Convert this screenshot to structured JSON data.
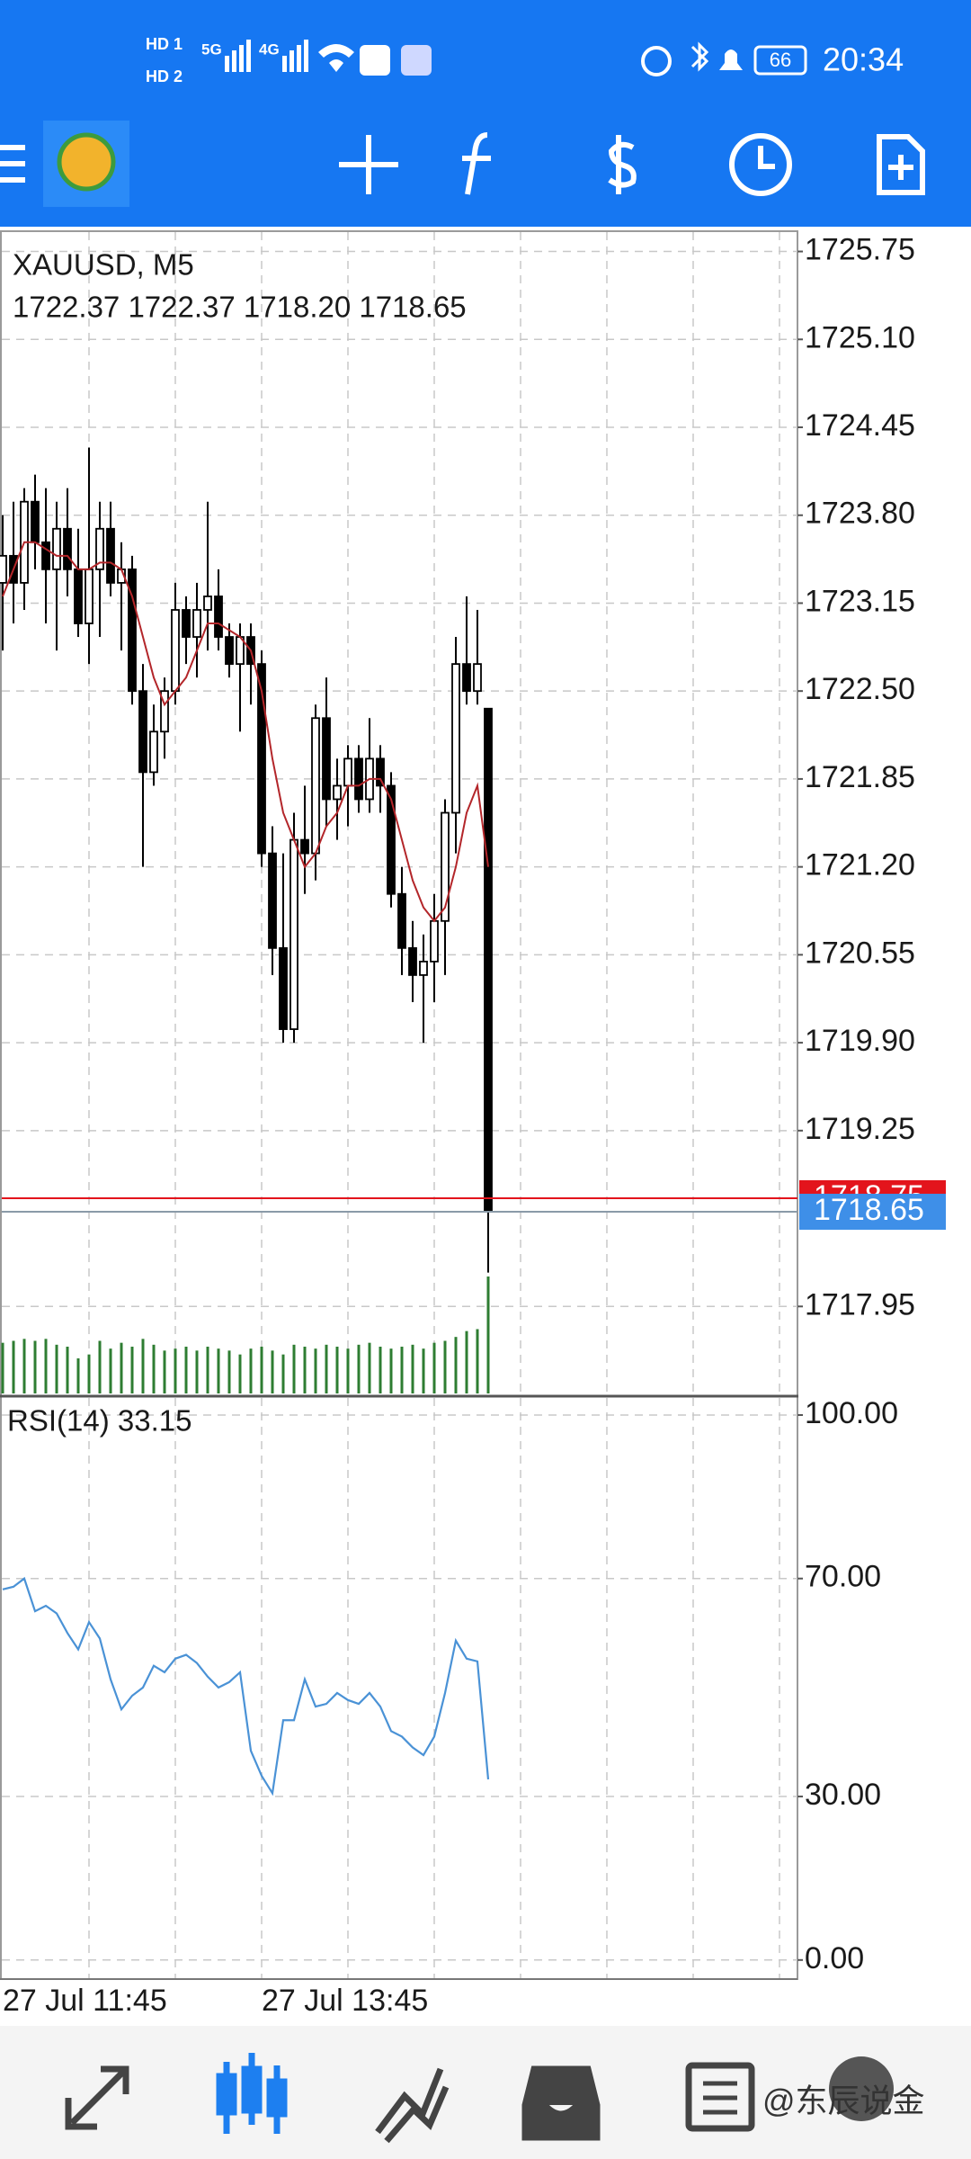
{
  "status_bar": {
    "hd1": "HD 1",
    "hd2": "HD 2",
    "net1": "5G",
    "net2": "4G",
    "battery": "66",
    "time": "20:34"
  },
  "chart_data": [
    {
      "type": "candlestick",
      "symbol": "XAUUSD, M5",
      "ohlc_text": "1722.37 1722.37 1718.20 1718.65",
      "categories": [
        "27 Jul 11:45",
        null,
        null,
        null,
        null,
        null,
        null,
        null,
        null,
        null,
        null,
        null,
        null,
        null,
        null,
        null,
        null,
        null,
        null,
        null,
        null,
        null,
        null,
        null,
        "27 Jul 13:45",
        null,
        null,
        null,
        null,
        null,
        null,
        null,
        null,
        null,
        null,
        null,
        null,
        null,
        null,
        null,
        null,
        null,
        null,
        null,
        null,
        null
      ],
      "open": [
        1723.3,
        1723.5,
        1723.3,
        1723.9,
        1723.6,
        1723.4,
        1723.7,
        1723.4,
        1723.0,
        1723.4,
        1723.7,
        1723.3,
        1723.4,
        1722.5,
        1721.9,
        1722.2,
        1722.5,
        1723.1,
        1722.9,
        1723.1,
        1723.2,
        1722.9,
        1722.7,
        1722.9,
        1722.7,
        1721.3,
        1720.6,
        1720.0,
        1721.4,
        1721.3,
        1722.3,
        1721.7,
        1721.8,
        1722.0,
        1721.7,
        1722.0,
        1721.8,
        1721.0,
        1720.6,
        1720.4,
        1720.5,
        1720.8,
        1721.6,
        1722.7,
        1722.5,
        1722.37
      ],
      "high": [
        1723.8,
        1723.9,
        1724.0,
        1724.1,
        1724.0,
        1723.9,
        1724.0,
        1723.7,
        1724.3,
        1723.9,
        1723.9,
        1723.6,
        1723.5,
        1722.7,
        1722.4,
        1722.6,
        1723.3,
        1723.2,
        1723.3,
        1723.9,
        1723.4,
        1723.0,
        1723.0,
        1723.0,
        1722.8,
        1721.5,
        1721.3,
        1721.6,
        1721.8,
        1722.4,
        1722.6,
        1722.0,
        1722.1,
        1722.1,
        1722.3,
        1722.1,
        1721.9,
        1721.2,
        1720.8,
        1720.7,
        1721.0,
        1721.7,
        1722.9,
        1723.2,
        1723.1,
        1722.37
      ],
      "low": [
        1722.8,
        1723.0,
        1723.1,
        1723.4,
        1723.0,
        1722.8,
        1723.2,
        1722.9,
        1722.7,
        1722.9,
        1723.2,
        1722.8,
        1722.4,
        1721.2,
        1721.8,
        1722.0,
        1722.4,
        1722.7,
        1722.6,
        1722.8,
        1722.8,
        1722.6,
        1722.2,
        1722.4,
        1721.2,
        1720.4,
        1719.9,
        1719.9,
        1721.0,
        1721.1,
        1721.5,
        1721.4,
        1721.5,
        1721.6,
        1721.6,
        1721.6,
        1720.9,
        1720.4,
        1720.2,
        1719.9,
        1720.2,
        1720.4,
        1721.3,
        1722.4,
        1722.4,
        1718.2
      ],
      "close": [
        1723.5,
        1723.3,
        1723.9,
        1723.6,
        1723.4,
        1723.7,
        1723.4,
        1723.0,
        1723.4,
        1723.7,
        1723.3,
        1723.4,
        1722.5,
        1721.9,
        1722.2,
        1722.5,
        1723.1,
        1722.9,
        1723.1,
        1723.2,
        1722.9,
        1722.7,
        1722.9,
        1722.7,
        1721.3,
        1720.6,
        1720.0,
        1721.4,
        1721.3,
        1722.3,
        1721.7,
        1721.8,
        1722.0,
        1721.7,
        1722.0,
        1721.8,
        1721.0,
        1720.6,
        1720.4,
        1720.5,
        1720.8,
        1721.6,
        1722.7,
        1722.5,
        1722.7,
        1718.65
      ],
      "ma": {
        "color": "#b3262a",
        "values": [
          1723.2,
          1723.4,
          1723.6,
          1723.6,
          1723.55,
          1723.5,
          1723.5,
          1723.4,
          1723.4,
          1723.45,
          1723.45,
          1723.4,
          1723.2,
          1722.9,
          1722.6,
          1722.4,
          1722.5,
          1722.6,
          1722.8,
          1723.0,
          1723.0,
          1722.95,
          1722.9,
          1722.8,
          1722.5,
          1722.0,
          1721.6,
          1721.4,
          1721.2,
          1721.3,
          1721.5,
          1721.6,
          1721.8,
          1721.8,
          1721.85,
          1721.85,
          1721.7,
          1721.4,
          1721.1,
          1720.9,
          1720.8,
          1720.9,
          1721.2,
          1721.6,
          1721.8,
          1721.2
        ]
      },
      "volume": {
        "color": "#2e7d32",
        "values": [
          260,
          270,
          280,
          270,
          280,
          250,
          240,
          180,
          200,
          270,
          230,
          260,
          240,
          280,
          250,
          220,
          230,
          240,
          220,
          240,
          230,
          220,
          200,
          230,
          240,
          220,
          200,
          250,
          240,
          230,
          250,
          240,
          230,
          250,
          260,
          240,
          230,
          240,
          250,
          230,
          260,
          270,
          290,
          320,
          330,
          600
        ]
      },
      "ylim": [
        1717.3,
        1725.9
      ],
      "yticks": [
        1725.75,
        {
          "value": 1725.1,
          "label": "1725.10"
        },
        1724.45,
        {
          "value": 1723.8,
          "label": "1723.80"
        },
        1723.15,
        {
          "value": 1722.5,
          "label": "1722.50"
        },
        1721.85,
        {
          "value": 1721.2,
          "label": "1721.20"
        },
        1720.55,
        {
          "value": 1719.9,
          "label": "1719.90"
        },
        1719.25,
        1717.95
      ],
      "ask": 1718.75,
      "ask_color": "#e3141c",
      "bid": 1718.65,
      "bid_color": "#3e8fe8",
      "grid": true
    },
    {
      "type": "line",
      "title": "RSI(14) 33.15",
      "color": "#4a92d6",
      "values": [
        68,
        68.5,
        70,
        64,
        65,
        63.6,
        60,
        57,
        62,
        59,
        51.5,
        46,
        48.5,
        50,
        54,
        52.8,
        55.3,
        56,
        54.5,
        52,
        50,
        51,
        52.8,
        38.4,
        33.8,
        30.6,
        44,
        44,
        51.5,
        46.5,
        47,
        49,
        47.7,
        47,
        49,
        46.5,
        42,
        41,
        39,
        37.6,
        41,
        49,
        58.6,
        55.3,
        54.8,
        33.15
      ],
      "ylim": [
        -3.5,
        103.3
      ],
      "yticks": [
        {
          "value": 100,
          "label": "100.00"
        },
        {
          "value": 70,
          "label": "70.00"
        },
        {
          "value": 30,
          "label": "30.00"
        },
        {
          "value": 0,
          "label": "0.00"
        }
      ],
      "grid": true
    }
  ],
  "watermark": "@东辰说金"
}
